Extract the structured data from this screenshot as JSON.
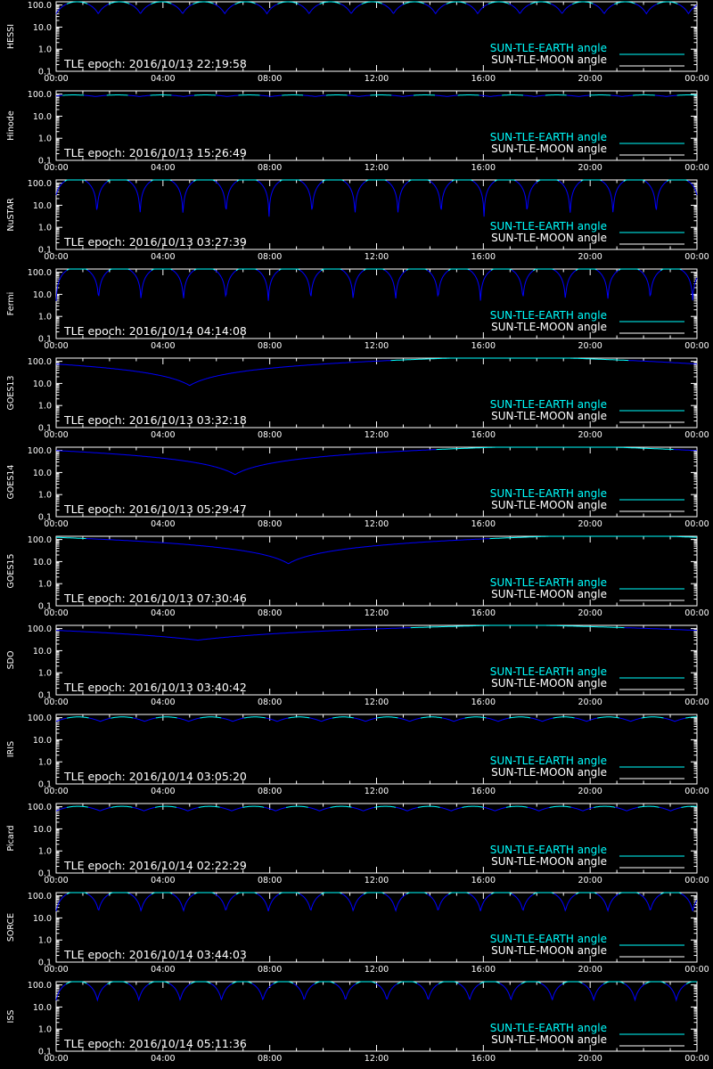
{
  "chart_data": [
    {
      "type": "line",
      "ylabel": "HESSI",
      "epoch_text": "TLE epoch: 2016/10/13 22:19:58",
      "orbits": 15.2,
      "phase": 0.0,
      "ymin": 40,
      "ymax": 140,
      "kind": "leo",
      "xticks": [
        "00:00",
        "04:00",
        "08:00",
        "12:00",
        "16:00",
        "20:00",
        "00:00"
      ],
      "yticks": [
        "100.0",
        "10.0",
        "1.0",
        "0.1"
      ],
      "ylim": [
        0.1,
        140
      ],
      "series": [
        {
          "name": "SUN-TLE-EARTH angle",
          "color": "#00ffff"
        },
        {
          "name": "SUN-TLE-MOON angle",
          "color": "#ffffff"
        }
      ]
    },
    {
      "type": "line",
      "ylabel": "Hinode",
      "epoch_text": "TLE epoch: 2016/10/13 15:26:49",
      "orbits": 14.6,
      "phase": 0.1,
      "ymin": 78,
      "ymax": 92,
      "kind": "leo",
      "xticks": [
        "00:00",
        "04:00",
        "08:00",
        "12:00",
        "16:00",
        "20:00",
        "00:00"
      ],
      "yticks": [
        "100.0",
        "10.0",
        "1.0",
        "0.1"
      ],
      "ylim": [
        0.1,
        140
      ],
      "series": [
        {
          "name": "SUN-TLE-EARTH angle",
          "color": "#00ffff"
        },
        {
          "name": "SUN-TLE-MOON angle",
          "color": "#ffffff"
        }
      ]
    },
    {
      "type": "line",
      "ylabel": "NuSTAR",
      "epoch_text": "TLE epoch: 2016/10/13 03:27:39",
      "orbits": 14.9,
      "phase": 0.05,
      "ymin": 3,
      "ymax": 170,
      "kind": "leo",
      "xticks": [
        "00:00",
        "04:00",
        "08:00",
        "12:00",
        "16:00",
        "20:00",
        "00:00"
      ],
      "yticks": [
        "100.0",
        "10.0",
        "1.0",
        "0.1"
      ],
      "ylim": [
        0.1,
        140
      ],
      "series": [
        {
          "name": "SUN-TLE-EARTH angle",
          "color": "#00ffff"
        },
        {
          "name": "SUN-TLE-MOON angle",
          "color": "#ffffff"
        }
      ]
    },
    {
      "type": "line",
      "ylabel": "Fermi",
      "epoch_text": "TLE epoch: 2016/10/14 04:14:08",
      "orbits": 15.1,
      "phase": 0.0,
      "ymin": 5,
      "ymax": 170,
      "kind": "leo",
      "xticks": [
        "00:00",
        "04:00",
        "08:00",
        "12:00",
        "16:00",
        "20:00",
        "00:00"
      ],
      "yticks": [
        "100.0",
        "10.0",
        "1.0",
        "0.1"
      ],
      "ylim": [
        0.1,
        140
      ],
      "series": [
        {
          "name": "SUN-TLE-EARTH angle",
          "color": "#00ffff"
        },
        {
          "name": "SUN-TLE-MOON angle",
          "color": "#ffffff"
        }
      ]
    },
    {
      "type": "line",
      "ylabel": "GOES13",
      "epoch_text": "TLE epoch: 2016/10/13 03:32:18",
      "min_hour": 5.0,
      "ymin": 8,
      "ymax": 170,
      "kind": "geo",
      "xticks": [
        "00:00",
        "04:00",
        "08:00",
        "12:00",
        "16:00",
        "20:00",
        "00:00"
      ],
      "yticks": [
        "100.0",
        "10.0",
        "1.0",
        "0.1"
      ],
      "ylim": [
        0.1,
        140
      ],
      "series": [
        {
          "name": "SUN-TLE-EARTH angle",
          "color": "#00ffff"
        },
        {
          "name": "SUN-TLE-MOON angle",
          "color": "#ffffff"
        }
      ]
    },
    {
      "type": "line",
      "ylabel": "GOES14",
      "epoch_text": "TLE epoch: 2016/10/13 05:29:47",
      "min_hour": 6.7,
      "ymin": 8,
      "ymax": 170,
      "kind": "geo",
      "xticks": [
        "00:00",
        "04:00",
        "08:00",
        "12:00",
        "16:00",
        "20:00",
        "00:00"
      ],
      "yticks": [
        "100.0",
        "10.0",
        "1.0",
        "0.1"
      ],
      "ylim": [
        0.1,
        140
      ],
      "series": [
        {
          "name": "SUN-TLE-EARTH angle",
          "color": "#00ffff"
        },
        {
          "name": "SUN-TLE-MOON angle",
          "color": "#ffffff"
        }
      ]
    },
    {
      "type": "line",
      "ylabel": "GOES15",
      "epoch_text": "TLE epoch: 2016/10/13 07:30:46",
      "min_hour": 8.7,
      "ymin": 8,
      "ymax": 170,
      "kind": "geo",
      "xticks": [
        "00:00",
        "04:00",
        "08:00",
        "12:00",
        "16:00",
        "20:00",
        "00:00"
      ],
      "yticks": [
        "100.0",
        "10.0",
        "1.0",
        "0.1"
      ],
      "ylim": [
        0.1,
        140
      ],
      "series": [
        {
          "name": "SUN-TLE-EARTH angle",
          "color": "#00ffff"
        },
        {
          "name": "SUN-TLE-MOON angle",
          "color": "#ffffff"
        }
      ]
    },
    {
      "type": "line",
      "ylabel": "SDO",
      "epoch_text": "TLE epoch: 2016/10/13 03:40:42",
      "min_hour": 5.3,
      "ymin": 30,
      "ymax": 150,
      "kind": "geo",
      "xticks": [
        "00:00",
        "04:00",
        "08:00",
        "12:00",
        "16:00",
        "20:00",
        "00:00"
      ],
      "yticks": [
        "100.0",
        "10.0",
        "1.0",
        "0.1"
      ],
      "ylim": [
        0.1,
        140
      ],
      "series": [
        {
          "name": "SUN-TLE-EARTH angle",
          "color": "#00ffff"
        },
        {
          "name": "SUN-TLE-MOON angle",
          "color": "#ffffff"
        }
      ]
    },
    {
      "type": "line",
      "ylabel": "IRIS",
      "epoch_text": "TLE epoch: 2016/10/14 03:05:20",
      "orbits": 14.5,
      "phase": 0.0,
      "ymin": 68,
      "ymax": 108,
      "kind": "leo",
      "xticks": [
        "00:00",
        "04:00",
        "08:00",
        "12:00",
        "16:00",
        "20:00",
        "00:00"
      ],
      "yticks": [
        "100.0",
        "10.0",
        "1.0",
        "0.1"
      ],
      "ylim": [
        0.1,
        140
      ],
      "series": [
        {
          "name": "SUN-TLE-EARTH angle",
          "color": "#00ffff"
        },
        {
          "name": "SUN-TLE-MOON angle",
          "color": "#ffffff"
        }
      ]
    },
    {
      "type": "line",
      "ylabel": "Picard",
      "epoch_text": "TLE epoch: 2016/10/14 02:22:29",
      "orbits": 14.6,
      "phase": 0.0,
      "ymin": 65,
      "ymax": 105,
      "kind": "leo",
      "xticks": [
        "00:00",
        "04:00",
        "08:00",
        "12:00",
        "16:00",
        "20:00",
        "00:00"
      ],
      "yticks": [
        "100.0",
        "10.0",
        "1.0",
        "0.1"
      ],
      "ylim": [
        0.1,
        140
      ],
      "series": [
        {
          "name": "SUN-TLE-EARTH angle",
          "color": "#00ffff"
        },
        {
          "name": "SUN-TLE-MOON angle",
          "color": "#ffffff"
        }
      ]
    },
    {
      "type": "line",
      "ylabel": "SORCE",
      "epoch_text": "TLE epoch: 2016/10/14 03:44:03",
      "orbits": 15.1,
      "phase": 0.0,
      "ymin": 20,
      "ymax": 160,
      "kind": "leo",
      "xticks": [
        "00:00",
        "04:00",
        "08:00",
        "12:00",
        "16:00",
        "20:00",
        "00:00"
      ],
      "yticks": [
        "100.0",
        "10.0",
        "1.0",
        "0.1"
      ],
      "ylim": [
        0.1,
        140
      ],
      "series": [
        {
          "name": "SUN-TLE-EARTH angle",
          "color": "#00ffff"
        },
        {
          "name": "SUN-TLE-MOON angle",
          "color": "#ffffff"
        }
      ]
    },
    {
      "type": "line",
      "ylabel": "ISS",
      "epoch_text": "TLE epoch: 2016/10/14 05:11:36",
      "orbits": 15.5,
      "phase": 0.0,
      "ymin": 20,
      "ymax": 150,
      "kind": "leo",
      "xticks": [
        "00:00",
        "04:00",
        "08:00",
        "12:00",
        "16:00",
        "20:00",
        "00:00"
      ],
      "yticks": [
        "100.0",
        "10.0",
        "1.0",
        "0.1"
      ],
      "ylim": [
        0.1,
        140
      ],
      "series": [
        {
          "name": "SUN-TLE-EARTH angle",
          "color": "#00ffff"
        },
        {
          "name": "SUN-TLE-MOON angle",
          "color": "#ffffff"
        }
      ]
    }
  ],
  "colors": {
    "earth": "#00ffff",
    "eclipse": "#0000ff",
    "moon": "#ffffff",
    "axis": "#ffffff",
    "background": "#000000"
  }
}
